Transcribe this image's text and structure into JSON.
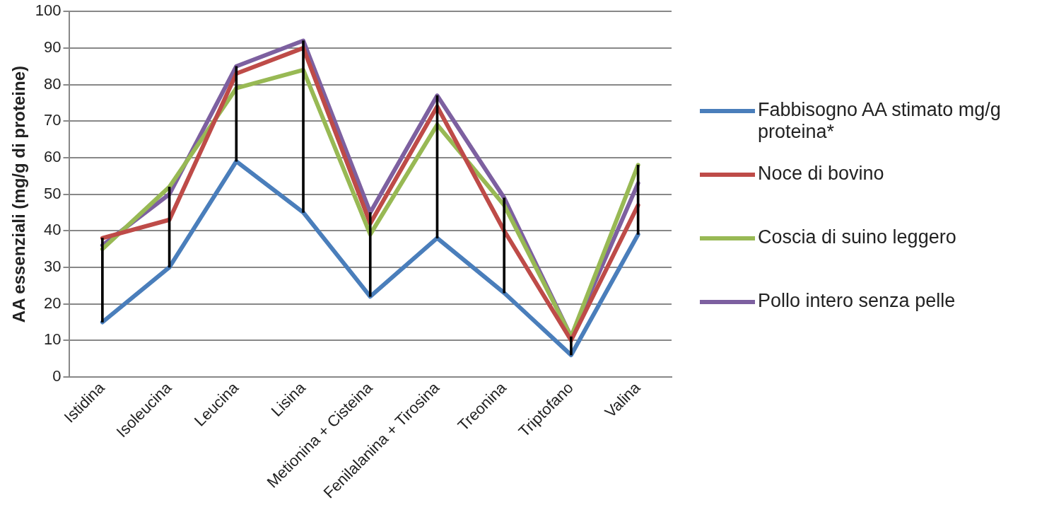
{
  "chart_data": {
    "type": "line",
    "ylabel": "AA essenziali (mg/g di proteine)",
    "categories": [
      "Istidina",
      "Isoleucina",
      "Leucina",
      "Lisina",
      "Metionina + Cisteina",
      "Fenilalanina + Tirosina",
      "Treonina",
      "Triptofano",
      "Valina"
    ],
    "series": [
      {
        "name": " Fabbisogno AA stimato mg/g proteina*",
        "color": "#4a7ebb",
        "values": [
          15,
          30,
          59,
          45,
          22,
          38,
          23,
          6,
          39
        ]
      },
      {
        "name": "Noce di bovino",
        "color": "#be4b48",
        "values": [
          38,
          43,
          83,
          90,
          42,
          74,
          40,
          10,
          47
        ]
      },
      {
        "name": "Coscia di suino leggero",
        "color": "#98b954",
        "values": [
          35,
          52,
          79,
          84,
          39,
          69,
          47,
          11,
          58
        ]
      },
      {
        "name": "Pollo intero senza pelle",
        "color": "#7d60a0",
        "values": [
          36,
          50,
          85,
          92,
          45,
          77,
          49,
          11,
          53
        ]
      },
      {
        "type": "bar",
        "color": "#000000",
        "base": [
          15,
          30,
          59,
          45,
          22,
          38,
          23,
          6,
          39
        ],
        "values": [
          23,
          22,
          26,
          47,
          23,
          39,
          26,
          5,
          19
        ]
      }
    ],
    "ylim": [
      0,
      100
    ],
    "yticks": [
      0,
      10,
      20,
      30,
      40,
      50,
      60,
      70,
      80,
      90,
      100
    ],
    "grid": "y",
    "legend": "right",
    "marker": "none",
    "line_style": "solid"
  }
}
